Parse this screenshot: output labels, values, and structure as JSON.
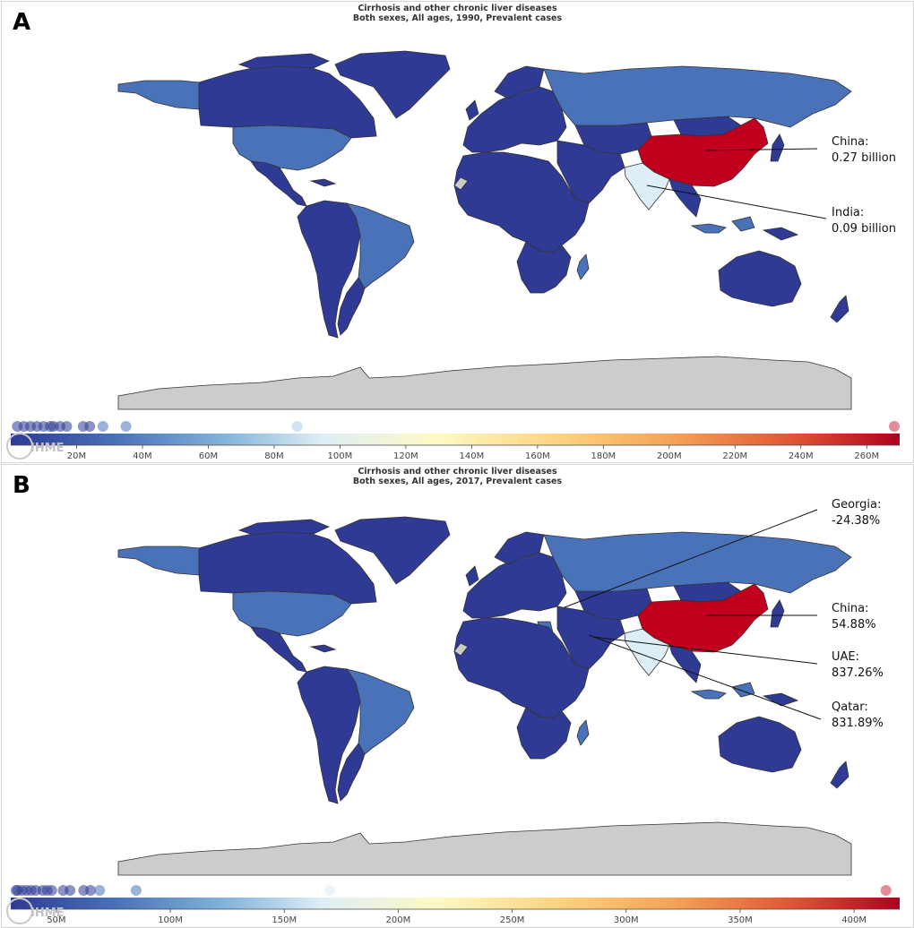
{
  "colors": {
    "ocean": "#ffffff",
    "very_low": "#2e3a94",
    "low": "#4a72b8",
    "mid_low": "#a9cce6",
    "light": "#ddeef6",
    "high": "#c0001e",
    "no_data": "#cccccc",
    "border": "#333333"
  },
  "panels": [
    {
      "letter": "A",
      "title": "Cirrhosis and other chronic liver diseases",
      "subtitle": "Both sexes, All ages, 1990, Prevalent cases",
      "callouts": [
        {
          "name": "China:",
          "value": "0.27 billion"
        },
        {
          "name": "India:",
          "value": "0.09 billion"
        }
      ],
      "colorbar": {
        "min": 0,
        "max": 270,
        "ticks": [
          "20M",
          "40M",
          "60M",
          "80M",
          "100M",
          "120M",
          "140M",
          "160M",
          "180M",
          "200M",
          "220M",
          "240M",
          "260M"
        ],
        "tick_values": [
          20,
          40,
          60,
          80,
          100,
          120,
          140,
          160,
          180,
          200,
          220,
          240,
          260
        ],
        "dots": [
          2,
          4,
          6,
          8,
          10,
          12,
          13,
          15,
          17,
          22,
          24,
          28,
          35,
          87,
          269
        ]
      },
      "countries": [
        {
          "name": "China",
          "class": "high"
        },
        {
          "name": "India",
          "class": "light"
        },
        {
          "name": "United States",
          "class": "low"
        },
        {
          "name": "Brazil",
          "class": "low"
        },
        {
          "name": "Russia",
          "class": "low"
        }
      ]
    },
    {
      "letter": "B",
      "title": "Cirrhosis and other chronic liver diseases",
      "subtitle": "Both sexes, All ages, 2017, Prevalent cases",
      "callouts": [
        {
          "name": "Georgia:",
          "value": "-24.38%"
        },
        {
          "name": "China:",
          "value": "54.88%"
        },
        {
          "name": "UAE:",
          "value": "837.26%"
        },
        {
          "name": "Qatar:",
          "value": "831.89%"
        }
      ],
      "colorbar": {
        "min": 30,
        "max": 420,
        "ticks": [
          "50M",
          "100M",
          "150M",
          "200M",
          "250M",
          "300M",
          "350M",
          "400M"
        ],
        "tick_values": [
          50,
          100,
          150,
          200,
          250,
          300,
          350,
          400
        ],
        "dots": [
          31,
          33,
          35,
          37,
          39,
          41,
          44,
          46,
          48,
          53,
          56,
          62,
          65,
          69,
          85,
          170,
          414
        ]
      },
      "countries": [
        {
          "name": "China",
          "class": "high"
        },
        {
          "name": "India",
          "class": "light"
        },
        {
          "name": "United States",
          "class": "low"
        },
        {
          "name": "Brazil",
          "class": "low"
        },
        {
          "name": "Russia",
          "class": "low"
        }
      ]
    }
  ],
  "logo_text": "IHME"
}
